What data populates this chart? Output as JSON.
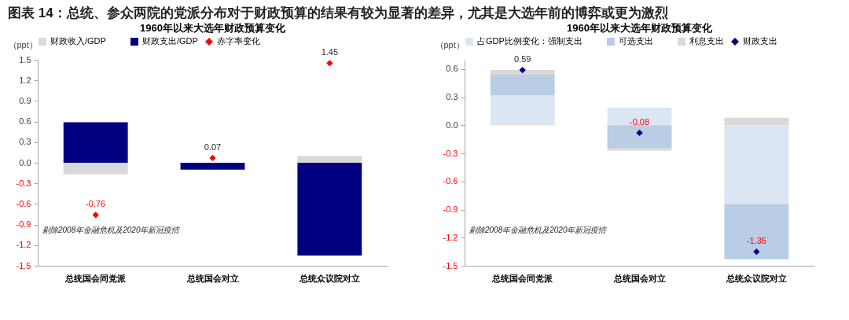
{
  "chart_data": [
    {
      "type": "bar",
      "title": "1960年以来大选年财政预算变化",
      "ylabel": "（ppt）",
      "categories": [
        "总统国会同党派",
        "总统国会对立",
        "总统众议院对立"
      ],
      "stacked": true,
      "legend": "top",
      "grid": false,
      "marker": "diamond",
      "ylim": [
        -1.5,
        1.5
      ],
      "yticks": [
        -1.5,
        -1.2,
        -0.9,
        -0.6,
        -0.3,
        {
          "value": 0,
          "label": "0.0"
        },
        0.3,
        0.6,
        0.9,
        1.2,
        1.5
      ],
      "series": [
        {
          "name": "财政收入/GDP",
          "color": "#d9d9d9",
          "values": [
            -0.17,
            0,
            0.1
          ]
        },
        {
          "name": "财政支出/GDP",
          "color": "#000080",
          "values": [
            0.59,
            -0.1,
            -1.35
          ]
        },
        {
          "name": "赤字率变化",
          "type": "scatter",
          "color": "#ff0000",
          "values": [
            -0.76,
            0.07,
            1.45
          ],
          "value_labels": [
            "-0.76",
            "0.07",
            "1.45"
          ]
        }
      ],
      "annotations": [
        "图表 14：总统、参众两院的党派分布对于财政预算的结果有较为显著的差异，尤其是大选年前的博弈或更为激烈",
        "剔除2008年金融危机及2020年新冠疫情"
      ]
    },
    {
      "type": "bar",
      "title": "1960年以来大选年财政预算变化",
      "ylabel": "（ppt）",
      "categories": [
        "总统国会同党派",
        "总统国会对立",
        "总统众议院对立"
      ],
      "stacked": true,
      "legend": "top",
      "grid": false,
      "marker": "diamond",
      "ylim": [
        -1.5,
        0.7
      ],
      "yticks": [
        -1.5,
        -1.2,
        -0.9,
        -0.6,
        -0.3,
        {
          "value": 0,
          "label": "0.0"
        },
        0.3,
        0.6
      ],
      "series": [
        {
          "name": "占GDP比例变化：强制支出",
          "color": "#dce6f2",
          "values": [
            0.32,
            0.19,
            -0.84
          ]
        },
        {
          "name": "可选支出",
          "color": "#b9cde5",
          "values": [
            0.22,
            -0.24,
            -0.59
          ]
        },
        {
          "name": "利息支出",
          "color": "#d9d9d9",
          "values": [
            0.05,
            -0.03,
            0.08
          ]
        },
        {
          "name": "财政支出",
          "type": "scatter",
          "color": "#000080",
          "values": [
            0.59,
            -0.08,
            -1.35
          ],
          "value_labels": [
            "0.59",
            "-0.08",
            "-1.35"
          ]
        }
      ],
      "annotations": [
        "剔除2008年金融危机及2020年新冠疫情"
      ]
    }
  ]
}
